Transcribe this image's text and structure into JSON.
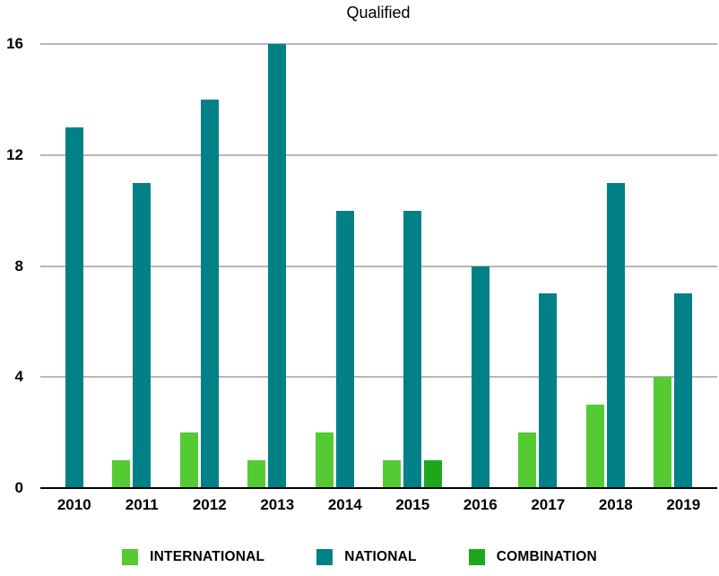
{
  "chart_data": {
    "type": "bar",
    "title": "Qualified",
    "categories": [
      "2010",
      "2011",
      "2012",
      "2013",
      "2014",
      "2015",
      "2016",
      "2017",
      "2018",
      "2019"
    ],
    "series": [
      {
        "name": "INTERNATIONAL",
        "color": "#55cb33",
        "values": [
          0,
          1,
          2,
          1,
          2,
          1,
          0,
          2,
          3,
          4
        ]
      },
      {
        "name": "NATIONAL",
        "color": "#008087",
        "values": [
          13,
          11,
          14,
          16,
          10,
          10,
          8,
          7,
          11,
          7
        ]
      },
      {
        "name": "COMBINATION",
        "color": "#1ea819",
        "values": [
          0,
          0,
          0,
          0,
          0,
          1,
          0,
          0,
          0,
          0
        ]
      }
    ],
    "xlabel": "",
    "ylabel": "",
    "ylim": [
      0,
      16
    ],
    "yticks": [
      0,
      4,
      8,
      12,
      16
    ],
    "grid": true,
    "legend_position": "bottom"
  },
  "styles": {
    "background": "#ffffff",
    "gridline_color": "#b7b7b7",
    "axis_color": "#000000",
    "text_color": "#000000"
  }
}
